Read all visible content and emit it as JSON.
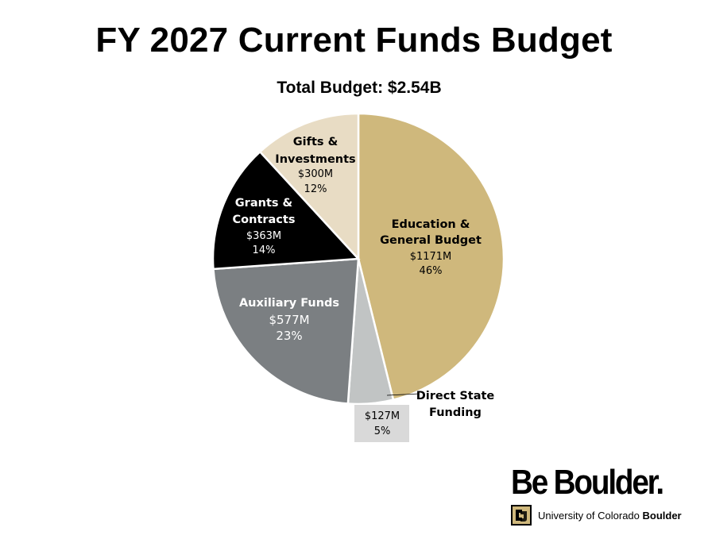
{
  "chart_data": {
    "type": "pie",
    "title": "FY 2027 Current Funds Budget",
    "subtitle": "Total Budget:  $2.54B",
    "slices": [
      {
        "name": "Education & General Budget",
        "label_lines": [
          "Education &",
          "General Budget"
        ],
        "amount": "$1171M",
        "value": 1171,
        "percent": "46%",
        "color": "#CFB87C"
      },
      {
        "name": "Direct State Funding",
        "label_lines": [
          "Direct State",
          "Funding"
        ],
        "amount": "$127M",
        "value": 127,
        "percent": "5%",
        "color": "#C1C4C4"
      },
      {
        "name": "Auxiliary Funds",
        "label_lines": [
          "Auxiliary Funds"
        ],
        "amount": "$577M",
        "value": 577,
        "percent": "23%",
        "color": "#7B7F82"
      },
      {
        "name": "Grants & Contracts",
        "label_lines": [
          "Grants &",
          "Contracts"
        ],
        "amount": "$363M",
        "value": 363,
        "percent": "14%",
        "color": "#000000"
      },
      {
        "name": "Gifts & Investments",
        "label_lines": [
          "Gifts &",
          "Investments"
        ],
        "amount": "$300M",
        "value": 300,
        "percent": "12%",
        "color": "#E8DCC4"
      }
    ]
  },
  "logo": {
    "wordmark": "Be Boulder.",
    "university_prefix": "University of Colorado ",
    "university_suffix": "Boulder"
  }
}
